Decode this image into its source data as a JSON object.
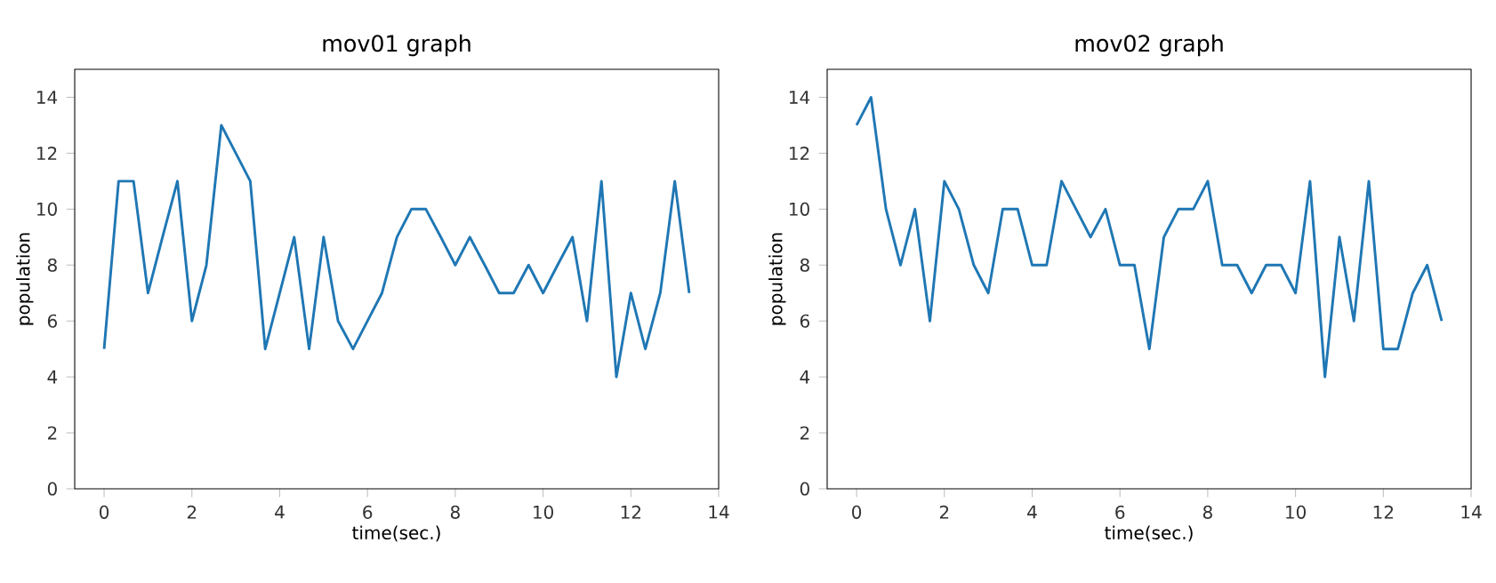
{
  "chart_data": [
    {
      "type": "line",
      "title": "mov01 graph",
      "xlabel": "time(sec.)",
      "ylabel": "population",
      "x": [
        0,
        0.33,
        0.67,
        1,
        1.33,
        1.67,
        2,
        2.33,
        2.67,
        3,
        3.33,
        3.67,
        4,
        4.33,
        4.67,
        5,
        5.33,
        5.67,
        6,
        6.33,
        6.67,
        7,
        7.33,
        7.67,
        8,
        8.33,
        8.67,
        9,
        9.33,
        9.67,
        10,
        10.33,
        10.67,
        11,
        11.33,
        11.67,
        12,
        12.33,
        12.67,
        13,
        13.33
      ],
      "values": [
        5,
        11,
        11,
        7,
        9,
        11,
        6,
        8,
        13,
        12,
        11,
        5,
        7,
        9,
        5,
        9,
        6,
        5,
        6,
        7,
        9,
        10,
        10,
        9,
        8,
        9,
        8,
        7,
        7,
        8,
        7,
        8,
        9,
        6,
        11,
        4,
        7,
        5,
        7,
        11,
        7
      ],
      "color": "#1f77b4",
      "xlim": [
        -0.67,
        14
      ],
      "ylim": [
        0,
        15
      ],
      "xticks": [
        0,
        2,
        4,
        6,
        8,
        10,
        12,
        14
      ],
      "yticks": [
        0,
        2,
        4,
        6,
        8,
        10,
        12,
        14
      ],
      "grid": false
    },
    {
      "type": "line",
      "title": "mov02 graph",
      "xlabel": "time(sec.)",
      "ylabel": "population",
      "x": [
        0,
        0.33,
        0.67,
        1,
        1.33,
        1.67,
        2,
        2.33,
        2.67,
        3,
        3.33,
        3.67,
        4,
        4.33,
        4.67,
        5,
        5.33,
        5.67,
        6,
        6.33,
        6.67,
        7,
        7.33,
        7.67,
        8,
        8.33,
        8.67,
        9,
        9.33,
        9.67,
        10,
        10.33,
        10.67,
        11,
        11.33,
        11.67,
        12,
        12.33,
        12.67,
        13,
        13.33
      ],
      "values": [
        13,
        14,
        10,
        8,
        10,
        6,
        11,
        10,
        8,
        7,
        10,
        10,
        8,
        8,
        11,
        10,
        9,
        10,
        8,
        8,
        5,
        9,
        10,
        10,
        11,
        8,
        8,
        7,
        8,
        8,
        7,
        11,
        4,
        9,
        6,
        11,
        5,
        5,
        7,
        8,
        6
      ],
      "color": "#1f77b4",
      "xlim": [
        -0.67,
        14
      ],
      "ylim": [
        0,
        15
      ],
      "xticks": [
        0,
        2,
        4,
        6,
        8,
        10,
        12,
        14
      ],
      "yticks": [
        0,
        2,
        4,
        6,
        8,
        10,
        12,
        14
      ],
      "grid": false
    }
  ]
}
